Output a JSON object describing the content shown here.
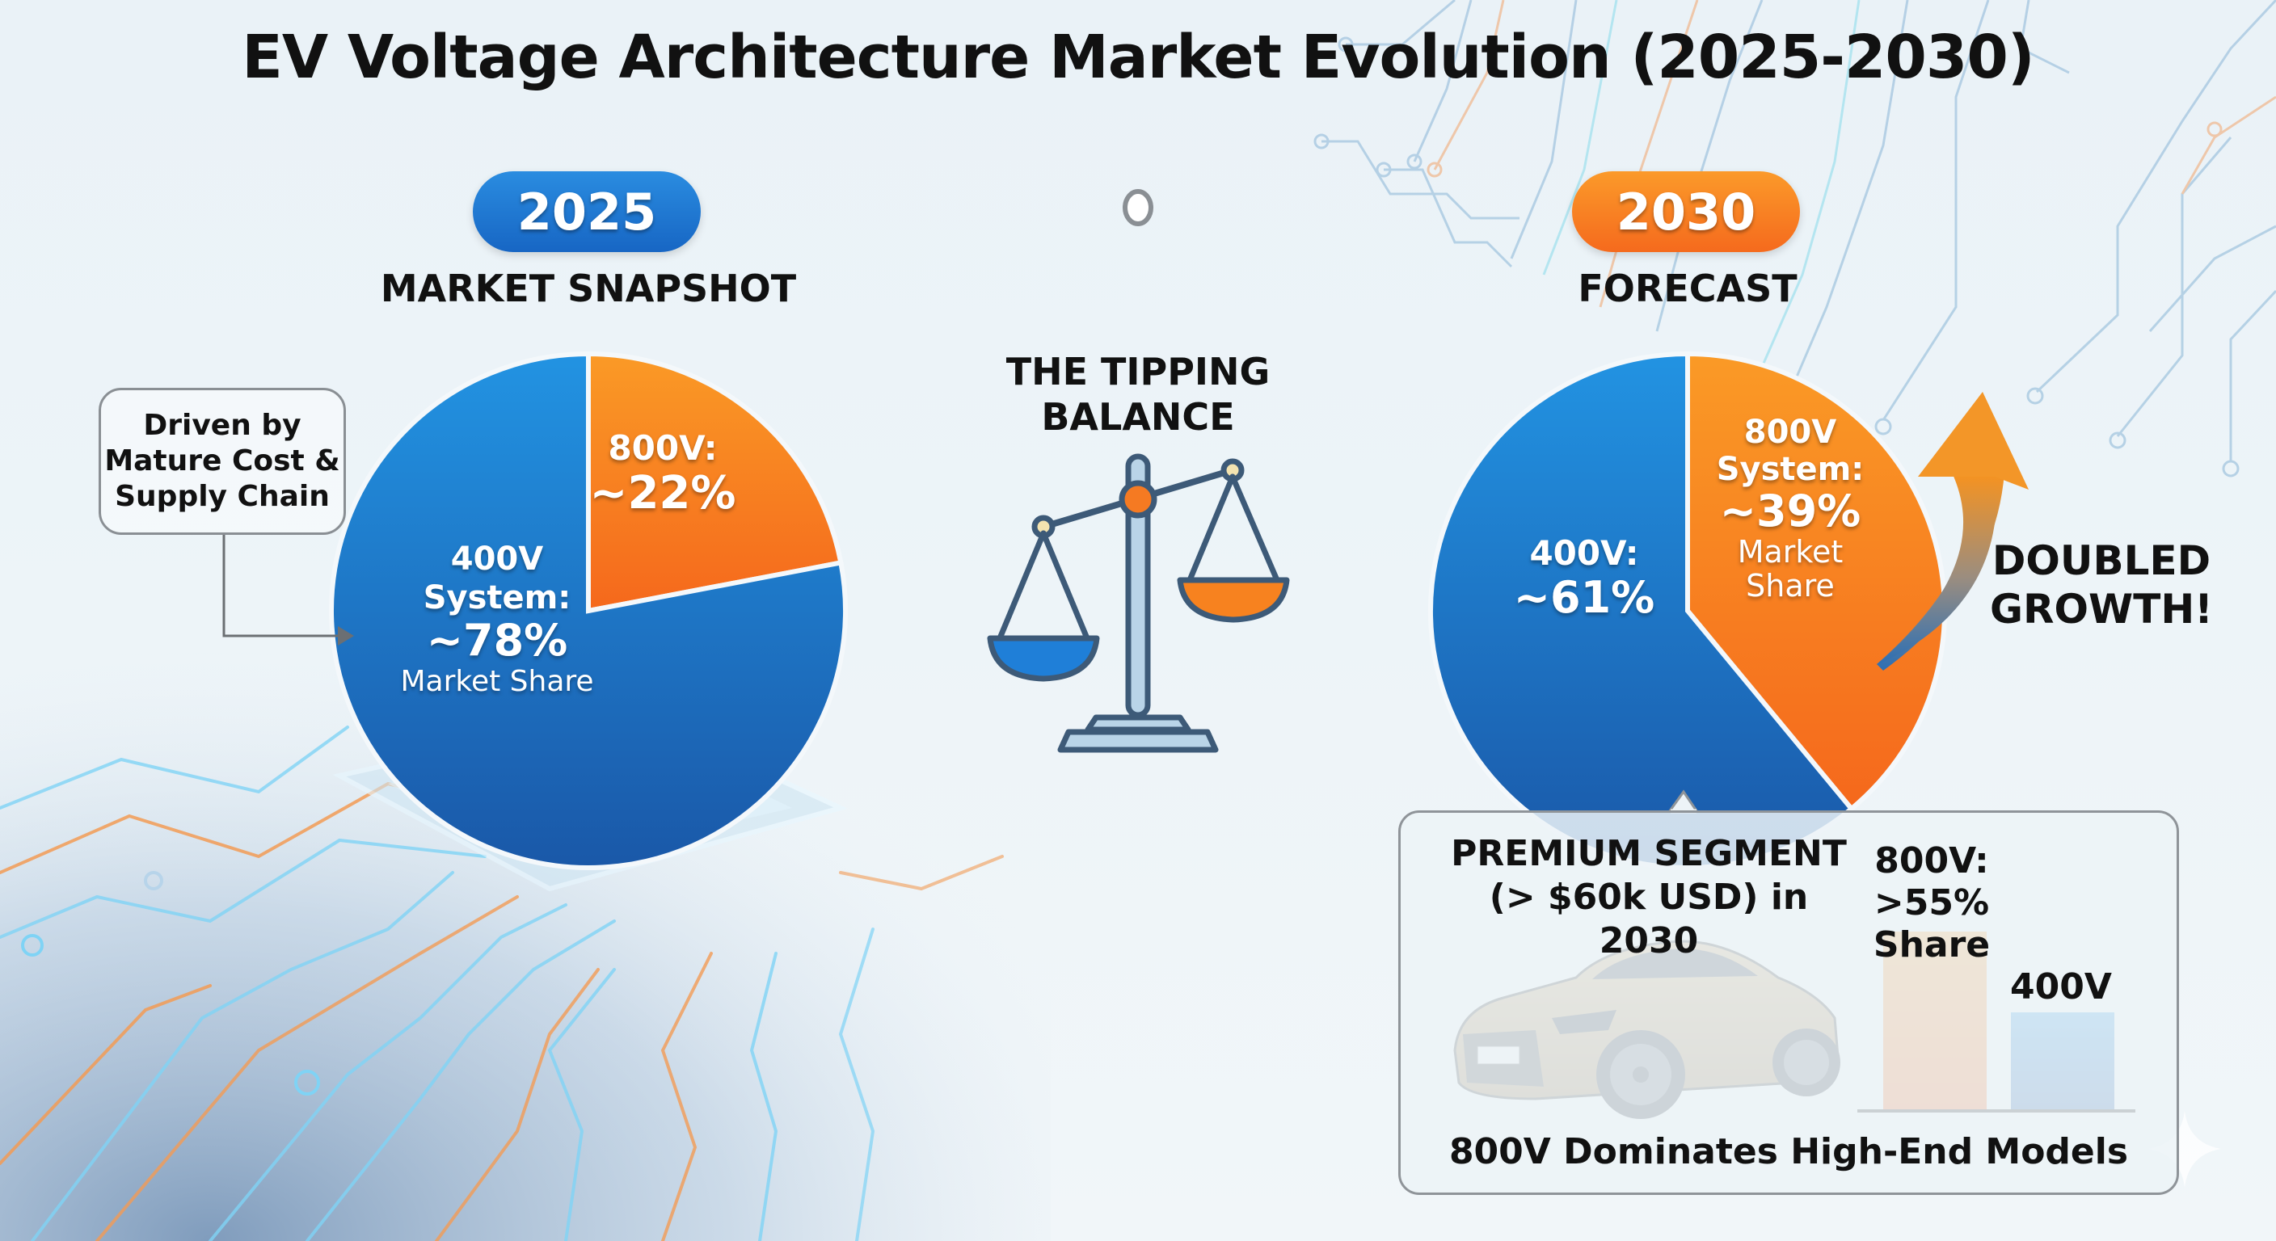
{
  "title": "EV Voltage Architecture Market Evolution (2025-2030)",
  "timeline": {
    "start_year": "2025",
    "end_year": "2030",
    "start_label": "MARKET SNAPSHOT",
    "end_label": "FORECAST",
    "start_color": "#1e78d4",
    "end_color": "#f57c20"
  },
  "callout_2025": {
    "lines": [
      "Driven by",
      "Mature Cost &",
      "Supply Chain"
    ],
    "icon": "arrow-right-icon"
  },
  "tipping": {
    "lines": [
      "THE TIPPING",
      "BALANCE"
    ],
    "icon": "balance-scale-icon"
  },
  "growth": {
    "lines": [
      "DOUBLED",
      "GROWTH!"
    ],
    "icon": "growth-arrow-icon"
  },
  "premium": {
    "title_lines": [
      "PREMIUM SEGMENT",
      "(> $60k USD) in 2030"
    ],
    "bar_800_label_lines": [
      "800V:",
      ">55%",
      "Share"
    ],
    "bar_400_label": "400V",
    "footer": "800V Dominates High-End Models",
    "image": "sports-sedan-car-image"
  },
  "colors": {
    "blue": "#1e72d0",
    "blue_dark": "#1a5eb0",
    "orange": "#f7871f",
    "orange_dark": "#f5681c"
  },
  "chart_data": [
    {
      "type": "pie",
      "title": "2025 Market Snapshot",
      "slices": [
        {
          "name": "800V",
          "value": 22,
          "label_lines": [
            "800V:",
            "~22%"
          ],
          "color": "#f7871f"
        },
        {
          "name": "400V System",
          "value": 78,
          "label_lines": [
            "400V",
            "System:",
            "~78%",
            "Market Share"
          ],
          "color": "#1e72d0"
        }
      ]
    },
    {
      "type": "pie",
      "title": "2030 Forecast",
      "slices": [
        {
          "name": "800V System",
          "value": 39,
          "label_lines": [
            "800V",
            "System:",
            "~39%",
            "Market",
            "Share"
          ],
          "color": "#f7871f"
        },
        {
          "name": "400V",
          "value": 61,
          "label_lines": [
            "400V:",
            "~61%"
          ],
          "color": "#1e72d0"
        }
      ]
    },
    {
      "type": "bar",
      "title": "Premium Segment (> $60k USD) in 2030",
      "categories": [
        "800V",
        "400V"
      ],
      "values": [
        55,
        30
      ],
      "value_note": "800V >55% share; 400V value not labeled (estimated from bar height)",
      "xlabel": "",
      "ylabel": "",
      "colors": [
        "#f7871f",
        "#1e72d0"
      ]
    }
  ]
}
